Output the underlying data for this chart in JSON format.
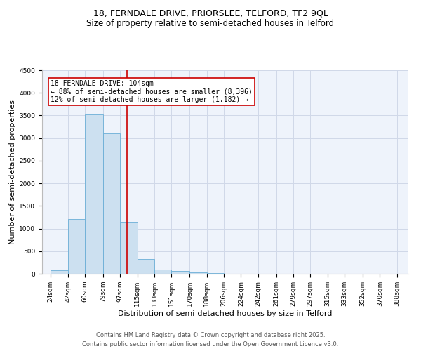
{
  "title": "18, FERNDALE DRIVE, PRIORSLEE, TELFORD, TF2 9QL",
  "subtitle": "Size of property relative to semi-detached houses in Telford",
  "xlabel": "Distribution of semi-detached houses by size in Telford",
  "ylabel": "Number of semi-detached properties",
  "annotation_line1": "18 FERNDALE DRIVE: 104sqm",
  "annotation_line2": "← 88% of semi-detached houses are smaller (8,396)",
  "annotation_line3": "12% of semi-detached houses are larger (1,182) →",
  "footer_line1": "Contains HM Land Registry data © Crown copyright and database right 2025.",
  "footer_line2": "Contains public sector information licensed under the Open Government Licence v3.0.",
  "property_size": 104,
  "bar_left_edges": [
    24,
    42,
    60,
    79,
    97,
    115,
    133,
    151,
    170,
    188,
    206,
    224,
    242,
    261,
    279,
    297,
    315,
    333,
    352,
    370
  ],
  "bar_widths": [
    18,
    18,
    19,
    18,
    18,
    18,
    18,
    19,
    18,
    18,
    18,
    18,
    19,
    18,
    18,
    18,
    18,
    19,
    18,
    18
  ],
  "bar_heights": [
    75,
    1215,
    3520,
    3110,
    1150,
    330,
    100,
    65,
    30,
    10,
    5,
    5,
    3,
    2,
    2,
    1,
    1,
    0,
    0,
    0
  ],
  "tick_labels": [
    "24sqm",
    "42sqm",
    "60sqm",
    "79sqm",
    "97sqm",
    "115sqm",
    "133sqm",
    "151sqm",
    "170sqm",
    "188sqm",
    "206sqm",
    "224sqm",
    "242sqm",
    "261sqm",
    "279sqm",
    "297sqm",
    "315sqm",
    "333sqm",
    "352sqm",
    "370sqm",
    "388sqm"
  ],
  "tick_positions": [
    24,
    42,
    60,
    79,
    97,
    115,
    133,
    151,
    170,
    188,
    206,
    224,
    242,
    261,
    279,
    297,
    315,
    333,
    352,
    370,
    388
  ],
  "ylim": [
    0,
    4500
  ],
  "xlim": [
    15,
    400
  ],
  "bar_color": "#cce0f0",
  "bar_edge_color": "#6aaed6",
  "vline_color": "#cc0000",
  "vline_x": 104,
  "annotation_box_color": "#cc0000",
  "grid_color": "#d0d8e8",
  "bg_color": "#eef3fb",
  "title_fontsize": 9,
  "subtitle_fontsize": 8.5,
  "axis_label_fontsize": 8,
  "tick_fontsize": 6.5,
  "annotation_fontsize": 7,
  "footer_fontsize": 6
}
